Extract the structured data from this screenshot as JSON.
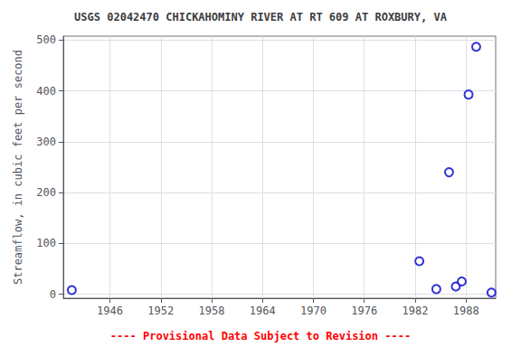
{
  "chart_data": {
    "type": "scatter",
    "title": "USGS 02042470 CHICKAHOMINY RIVER AT RT 609 AT ROXBURY, VA",
    "ylabel": "Streamflow, in cubic feet per second",
    "annotations": [
      {
        "text": "---- Provisional Data Subject to Revision ----",
        "color": "#ff0000"
      }
    ],
    "x": [
      1941.5,
      1982.5,
      1984.5,
      1986.0,
      1986.8,
      1987.5,
      1988.3,
      1989.2,
      1991.0
    ],
    "values": [
      8,
      65,
      10,
      240,
      15,
      25,
      393,
      487,
      3
    ],
    "color": "#0000cc",
    "marker": "circle",
    "xlim": [
      1940.5,
      1991.5
    ],
    "ylim": [
      -8,
      508
    ],
    "xticks": [
      1946,
      1952,
      1958,
      1964,
      1970,
      1976,
      1982,
      1988
    ],
    "yticks": [
      0,
      100,
      200,
      300,
      400,
      500
    ],
    "grid": true
  }
}
